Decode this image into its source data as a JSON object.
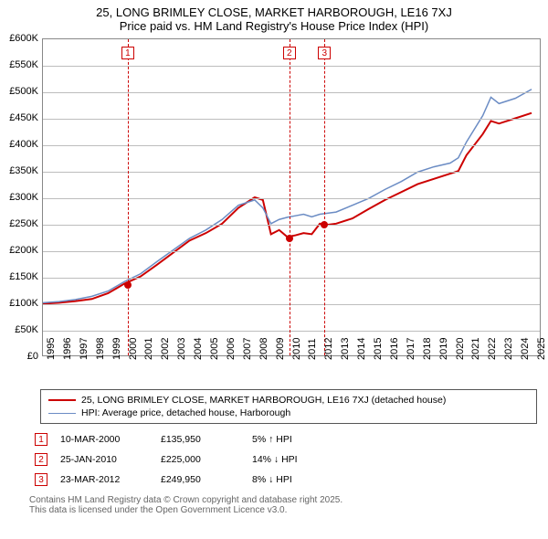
{
  "title": {
    "line1": "25, LONG BRIMLEY CLOSE, MARKET HARBOROUGH, LE16 7XJ",
    "line2": "Price paid vs. HM Land Registry's House Price Index (HPI)",
    "fontsize": 13
  },
  "chart": {
    "type": "line",
    "x_domain": [
      1995,
      2025.5
    ],
    "y_domain": [
      0,
      600000
    ],
    "x_ticks": [
      1995,
      1996,
      1997,
      1998,
      1999,
      2000,
      2001,
      2002,
      2003,
      2004,
      2005,
      2006,
      2007,
      2008,
      2009,
      2010,
      2011,
      2012,
      2013,
      2014,
      2015,
      2016,
      2017,
      2018,
      2019,
      2020,
      2021,
      2022,
      2023,
      2024,
      2025
    ],
    "y_ticks": [
      0,
      50000,
      100000,
      150000,
      200000,
      250000,
      300000,
      350000,
      400000,
      450000,
      500000,
      550000,
      600000
    ],
    "y_tick_labels": [
      "£0",
      "£50K",
      "£100K",
      "£150K",
      "£200K",
      "£250K",
      "£300K",
      "£350K",
      "£400K",
      "£450K",
      "£500K",
      "£550K",
      "£600K"
    ],
    "grid_color": "#bdbdbd",
    "border_color": "#888888",
    "background_color": "#ffffff",
    "series": [
      {
        "name": "price_paid",
        "color": "#cc0000",
        "width": 2,
        "points": [
          [
            1995,
            98000
          ],
          [
            1996,
            100000
          ],
          [
            1997,
            103000
          ],
          [
            1998,
            107000
          ],
          [
            1999,
            118000
          ],
          [
            2000,
            135950
          ],
          [
            2001,
            150000
          ],
          [
            2002,
            172000
          ],
          [
            2003,
            195000
          ],
          [
            2004,
            218000
          ],
          [
            2005,
            232000
          ],
          [
            2006,
            250000
          ],
          [
            2007,
            280000
          ],
          [
            2008,
            300000
          ],
          [
            2008.5,
            295000
          ],
          [
            2009,
            230000
          ],
          [
            2009.5,
            238000
          ],
          [
            2010,
            225000
          ],
          [
            2010.5,
            228000
          ],
          [
            2011,
            232000
          ],
          [
            2011.5,
            230000
          ],
          [
            2012,
            249950
          ],
          [
            2012.5,
            248000
          ],
          [
            2013,
            250000
          ],
          [
            2014,
            260000
          ],
          [
            2015,
            278000
          ],
          [
            2016,
            295000
          ],
          [
            2017,
            310000
          ],
          [
            2018,
            325000
          ],
          [
            2019,
            335000
          ],
          [
            2020,
            345000
          ],
          [
            2020.5,
            350000
          ],
          [
            2021,
            380000
          ],
          [
            2022,
            420000
          ],
          [
            2022.5,
            445000
          ],
          [
            2023,
            440000
          ],
          [
            2024,
            450000
          ],
          [
            2025,
            460000
          ]
        ]
      },
      {
        "name": "hpi",
        "color": "#6b8cc4",
        "width": 1.5,
        "points": [
          [
            1995,
            100000
          ],
          [
            1996,
            102000
          ],
          [
            1997,
            106000
          ],
          [
            1998,
            112000
          ],
          [
            1999,
            122000
          ],
          [
            2000,
            140000
          ],
          [
            2001,
            155000
          ],
          [
            2002,
            178000
          ],
          [
            2003,
            200000
          ],
          [
            2004,
            222000
          ],
          [
            2005,
            238000
          ],
          [
            2006,
            258000
          ],
          [
            2007,
            285000
          ],
          [
            2008,
            295000
          ],
          [
            2008.5,
            280000
          ],
          [
            2009,
            250000
          ],
          [
            2009.5,
            258000
          ],
          [
            2010,
            262000
          ],
          [
            2010.5,
            265000
          ],
          [
            2011,
            268000
          ],
          [
            2011.5,
            263000
          ],
          [
            2012,
            268000
          ],
          [
            2013,
            272000
          ],
          [
            2014,
            285000
          ],
          [
            2015,
            298000
          ],
          [
            2016,
            315000
          ],
          [
            2017,
            330000
          ],
          [
            2018,
            348000
          ],
          [
            2019,
            358000
          ],
          [
            2020,
            365000
          ],
          [
            2020.5,
            375000
          ],
          [
            2021,
            405000
          ],
          [
            2022,
            455000
          ],
          [
            2022.5,
            490000
          ],
          [
            2023,
            478000
          ],
          [
            2024,
            488000
          ],
          [
            2025,
            505000
          ]
        ]
      }
    ],
    "sale_markers": [
      {
        "idx": "1",
        "x": 2000.19,
        "price": 135950
      },
      {
        "idx": "2",
        "x": 2010.07,
        "price": 225000
      },
      {
        "idx": "3",
        "x": 2012.22,
        "price": 249950
      }
    ]
  },
  "legend": {
    "items": [
      {
        "color": "#cc0000",
        "width": 2,
        "label": "25, LONG BRIMLEY CLOSE, MARKET HARBOROUGH, LE16 7XJ (detached house)"
      },
      {
        "color": "#6b8cc4",
        "width": 1.5,
        "label": "HPI: Average price, detached house, Harborough"
      }
    ]
  },
  "sales_table": {
    "rows": [
      {
        "idx": "1",
        "date": "10-MAR-2000",
        "price": "£135,950",
        "delta": "5% ↑ HPI"
      },
      {
        "idx": "2",
        "date": "25-JAN-2010",
        "price": "£225,000",
        "delta": "14% ↓ HPI"
      },
      {
        "idx": "3",
        "date": "23-MAR-2012",
        "price": "£249,950",
        "delta": "8% ↓ HPI"
      }
    ]
  },
  "attribution": {
    "line1": "Contains HM Land Registry data © Crown copyright and database right 2025.",
    "line2": "This data is licensed under the Open Government Licence v3.0."
  }
}
